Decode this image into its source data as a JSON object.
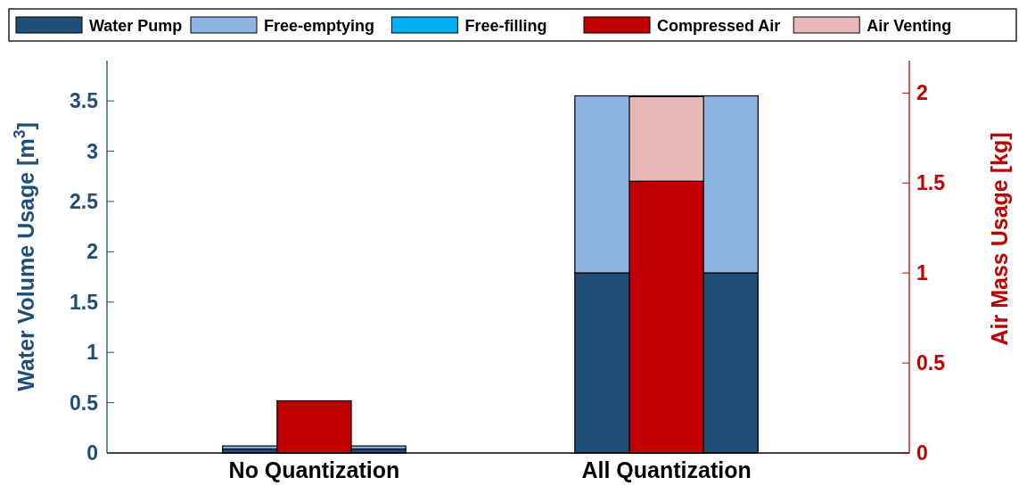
{
  "chart_data": {
    "type": "bar",
    "stacked": true,
    "categories": [
      "No Quantization",
      "All Quantization"
    ],
    "series": [
      {
        "name": "Water Pump",
        "color": "#1f4e79",
        "values": [
          0.04,
          1.79
        ],
        "axis": "y"
      },
      {
        "name": "Free-emptying",
        "color": "#8eb4e3",
        "values": [
          0.03,
          1.76
        ],
        "axis": "y"
      },
      {
        "name": "Free-filling",
        "color": "#00b0f0",
        "values": [
          0,
          0
        ],
        "axis": "y"
      },
      {
        "name": "Compressed Air",
        "color": "#c00000",
        "values": [
          0.29,
          1.51
        ],
        "axis": "y2"
      },
      {
        "name": "Air Venting",
        "color": "#e6b9b8",
        "values": [
          0,
          0.47
        ],
        "axis": "y2"
      }
    ],
    "ylabel": "Water Volume Usage [m$^{3}$]",
    "y2label": "Air Mass Usage [kg]",
    "ylim": [
      0,
      3.9
    ],
    "yticks": [
      0,
      0.5,
      1,
      1.5,
      2,
      2.5,
      3,
      3.5
    ],
    "y2lim": [
      0,
      2.18
    ],
    "y2ticks": [
      0,
      0.5,
      1,
      1.5,
      2
    ],
    "legend": "top",
    "grid": false
  }
}
